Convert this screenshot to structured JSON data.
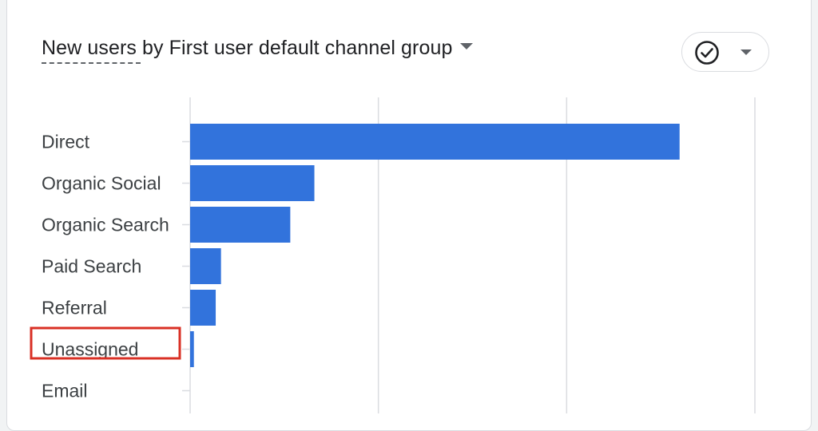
{
  "header": {
    "title": "New users by First user default channel group"
  },
  "icons": {
    "check": "check-circle-icon",
    "caret": "chevron-down-icon"
  },
  "colors": {
    "bar": "#3273dc",
    "highlight_box": "#d93025",
    "gridline": "#dadce0"
  },
  "highlighted_category": "Unassigned",
  "chart_data": {
    "type": "bar",
    "orientation": "horizontal",
    "title": "New users by First user default channel group",
    "categories": [
      "Direct",
      "Organic Social",
      "Organic Search",
      "Paid Search",
      "Referral",
      "Unassigned",
      "Email"
    ],
    "values": [
      650,
      165,
      133,
      41,
      34,
      5,
      0
    ],
    "xlim": [
      0,
      750
    ],
    "grid": true
  }
}
